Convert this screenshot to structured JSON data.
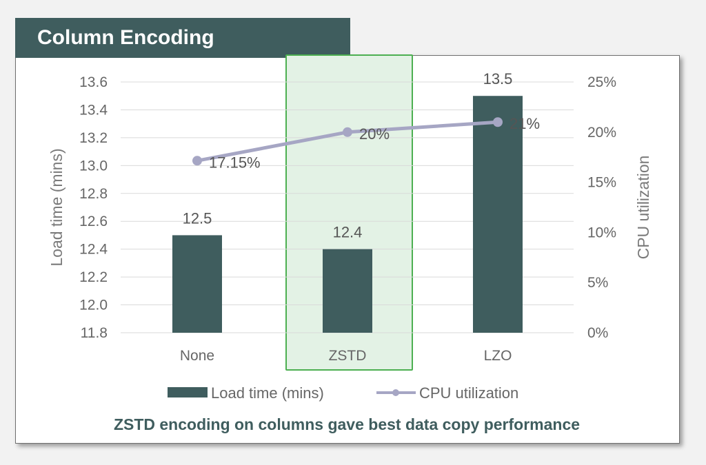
{
  "header": {
    "title": "Column Encoding"
  },
  "caption": "ZSTD encoding on columns gave best data copy performance",
  "colors": {
    "bar": "#3f5d5e",
    "line": "#a6a6c4",
    "highlight_fill": "#e3f2e5",
    "highlight_stroke": "#4caf50"
  },
  "chart_data": {
    "type": "bar",
    "categories": [
      "None",
      "ZSTD",
      "LZO"
    ],
    "highlighted_category": "ZSTD",
    "series": [
      {
        "name": "Load time (mins)",
        "type": "bar",
        "axis": "left",
        "values": [
          12.5,
          12.4,
          13.5
        ],
        "labels": [
          "12.5",
          "12.4",
          "13.5"
        ]
      },
      {
        "name": "CPU utilization",
        "type": "line",
        "axis": "right",
        "values": [
          17.15,
          20,
          21
        ],
        "labels": [
          "17.15%",
          "20%",
          "21%"
        ]
      }
    ],
    "ylabel": "Load time (mins)",
    "y2label": "CPU utilization",
    "ylim": [
      11.8,
      13.6
    ],
    "y2lim": [
      0,
      25
    ],
    "yticks": [
      "11.8",
      "12.0",
      "12.2",
      "12.4",
      "12.6",
      "12.8",
      "13.0",
      "13.2",
      "13.4",
      "13.6"
    ],
    "y2ticks": [
      "0%",
      "5%",
      "10%",
      "15%",
      "20%",
      "25%"
    ],
    "grid": true,
    "legend_position": "bottom"
  }
}
